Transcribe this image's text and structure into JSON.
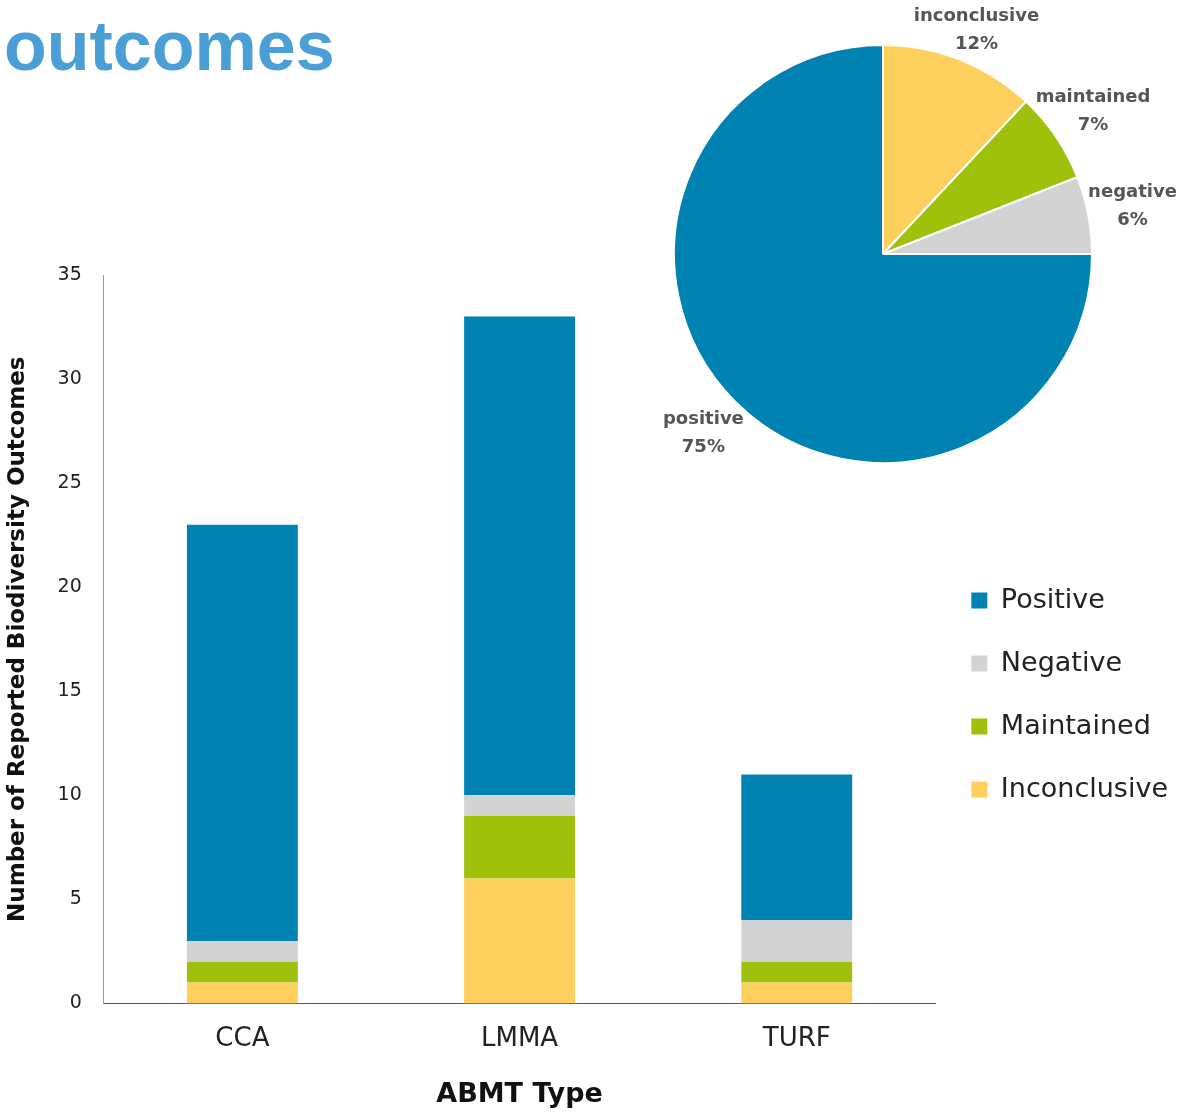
{
  "chart_data": [
    {
      "type": "bar",
      "title": "outcomes",
      "stacked": true,
      "categories": [
        "CCA",
        "LMMA",
        "TURF"
      ],
      "xlabel": "ABMT Type",
      "ylabel": "Number of Reported Biodiversity Outcomes",
      "ylim": [
        0,
        35
      ],
      "yticks": [
        0,
        5,
        10,
        15,
        20,
        25,
        30,
        35
      ],
      "grid": false,
      "legend": "right",
      "series": [
        {
          "name": "Inconclusive",
          "color": "#fdd05e",
          "values": [
            1,
            6,
            1
          ]
        },
        {
          "name": "Maintained",
          "color": "#9fc10b",
          "values": [
            1,
            3,
            1
          ]
        },
        {
          "name": "Negative",
          "color": "#d3d3d3",
          "values": [
            1,
            1,
            2
          ]
        },
        {
          "name": "Positive",
          "color": "#0083b3",
          "values": [
            20,
            23,
            7
          ]
        }
      ]
    },
    {
      "type": "pie",
      "categories": [
        "inconclusive",
        "maintained",
        "negative",
        "positive"
      ],
      "values": [
        12,
        7,
        6,
        75
      ],
      "colors": [
        "#fdd05e",
        "#9fc10b",
        "#d3d3d3",
        "#0083b3"
      ],
      "value_labels": [
        "12%",
        "7%",
        "6%",
        "75%"
      ],
      "legend": false
    }
  ]
}
